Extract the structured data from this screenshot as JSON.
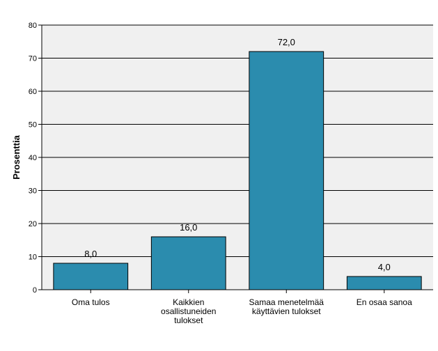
{
  "chart_data": {
    "type": "bar",
    "categories": [
      [
        "Oma tulos"
      ],
      [
        "Kaikkien",
        "osallistuneiden",
        "tulokset"
      ],
      [
        "Samaa menetelmää",
        "käyttävien tulokset"
      ],
      [
        "En osaa sanoa"
      ]
    ],
    "values": [
      8.0,
      16.0,
      72.0,
      4.0
    ],
    "data_labels": [
      "8,0",
      "16,0",
      "72,0",
      "4,0"
    ],
    "ylabel": "Prosenttia",
    "xlabel": "",
    "title": "",
    "ylim": [
      0,
      80
    ],
    "yticks": [
      "0",
      "10",
      "20",
      "30",
      "40",
      "50",
      "60",
      "70",
      "80"
    ],
    "grid": true,
    "colors": {
      "bar": "#2B8CAE",
      "bar_border": "#000000",
      "plot_bg": "#F0F0F0",
      "grid": "#000000"
    }
  }
}
